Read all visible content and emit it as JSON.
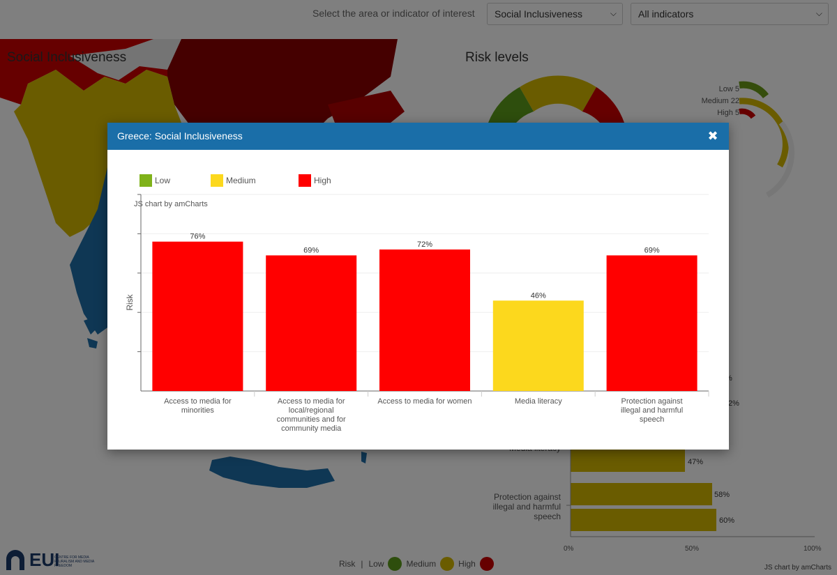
{
  "filter": {
    "label": "Select the area or indicator of interest",
    "area_value": "Social Inclusiveness",
    "indicator_value": "All indicators"
  },
  "background": {
    "map_title": "Social Inclusiveness",
    "risk_title": "Risk levels",
    "risk_summary": [
      {
        "label": "Low 5",
        "color": "#7aa61a"
      },
      {
        "label": "Medium 22",
        "color": "#e0c21a"
      },
      {
        "label": "High 5",
        "color": "#e01010"
      }
    ],
    "bar_labels": [
      {
        "text": "Media literacy"
      },
      {
        "text": "Protection against illegal and harmful speech"
      }
    ],
    "bar_values": [
      "47%",
      "58%",
      "60%"
    ],
    "partial_values": [
      "%",
      "2%"
    ],
    "axis_ticks": [
      "0%",
      "50%",
      "100%"
    ],
    "logo_text": "EUI",
    "logo_sub": "CENTRE FOR MEDIA PLURALISM AND MEDIA FREEDOM",
    "bottom_legend": {
      "risk": "Risk",
      "separator": "|",
      "low": "Low",
      "medium": "Medium",
      "high": "High"
    },
    "credit": "JS chart by amCharts"
  },
  "modal": {
    "title": "Greece: Social Inclusiveness",
    "close_icon": "close-icon"
  },
  "colors": {
    "low": "#7fb21a",
    "medium": "#fcd81d",
    "high": "#ff0000",
    "header": "#1a6ea8"
  },
  "chart_data": {
    "type": "bar",
    "ylabel": "Risk",
    "ylim": [
      0,
      100
    ],
    "grid": true,
    "legend": [
      "Low",
      "Medium",
      "High"
    ],
    "legend_position": "top-left",
    "credit": "JS chart by amCharts",
    "categories": [
      "Access to media for minorities",
      "Access to media for local/regional communities and for community media",
      "Access to media for women",
      "Media literacy",
      "Protection against illegal and harmful speech"
    ],
    "category_lines": [
      [
        "Access to media for",
        "minorities"
      ],
      [
        "Access to media for",
        "local/regional",
        "communities and for",
        "community media"
      ],
      [
        "Access to media for women"
      ],
      [
        "Media literacy"
      ],
      [
        "Protection against",
        "illegal and harmful",
        "speech"
      ]
    ],
    "values": [
      76,
      69,
      72,
      46,
      69
    ],
    "value_labels": [
      "76%",
      "69%",
      "72%",
      "46%",
      "69%"
    ],
    "risk_levels": [
      "High",
      "High",
      "High",
      "Medium",
      "High"
    ]
  }
}
